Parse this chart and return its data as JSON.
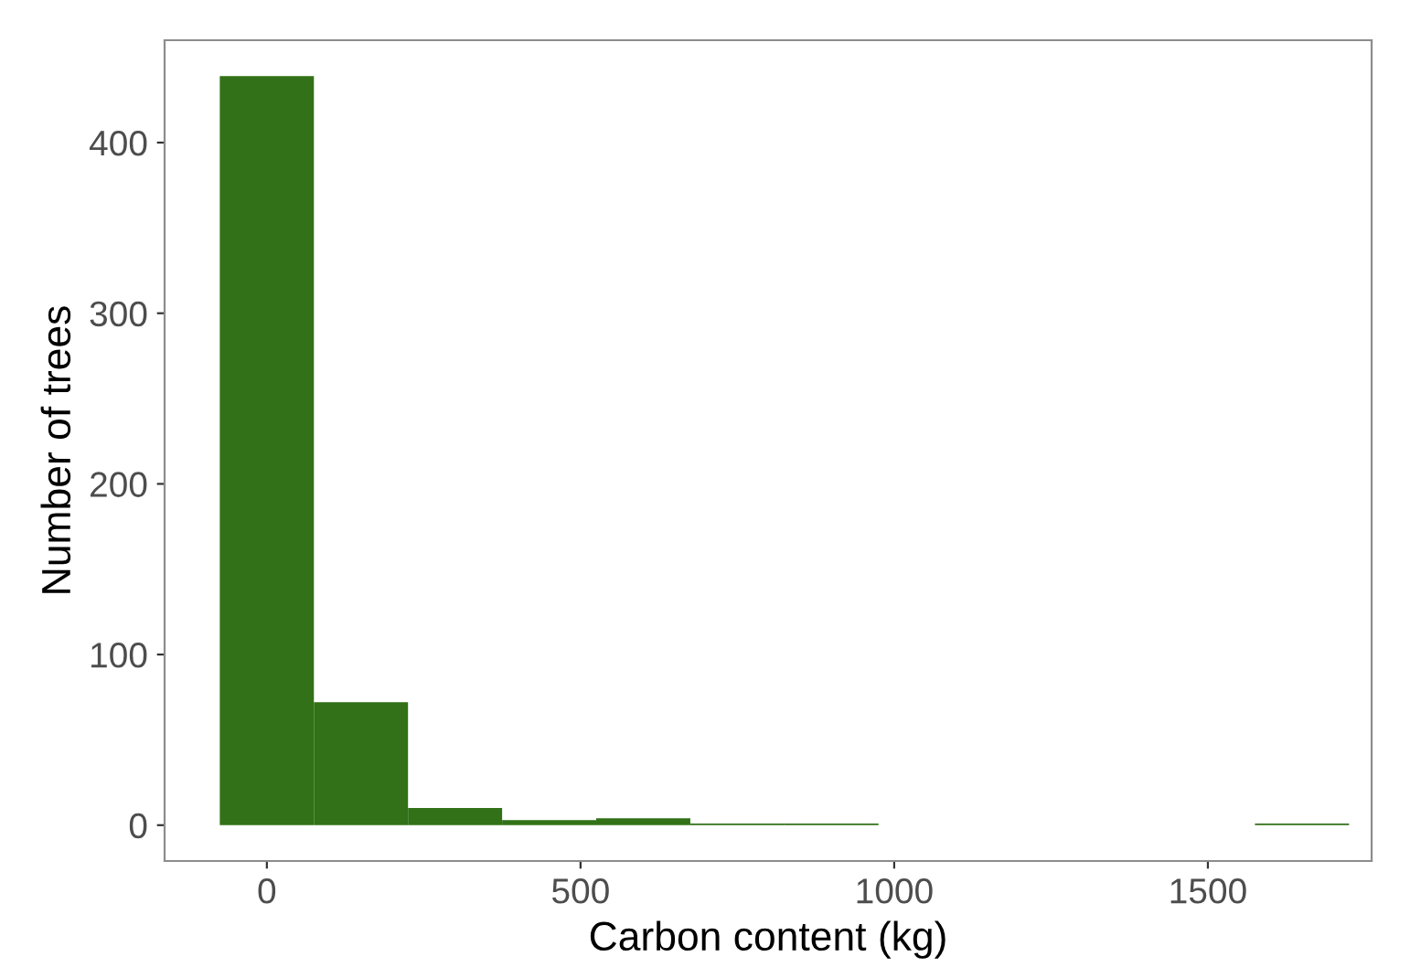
{
  "chart_data": {
    "type": "histogram",
    "xlabel": "Carbon content (kg)",
    "ylabel": "Number of trees",
    "bins": [
      -75,
      75,
      225,
      375,
      525,
      675,
      825,
      975,
      1125,
      1275,
      1425,
      1575,
      1725
    ],
    "values": [
      439,
      72,
      10,
      3,
      4,
      1,
      1,
      0,
      0,
      0,
      0,
      1
    ],
    "color": "#327117",
    "xlim": [
      -163,
      1761
    ],
    "ylim": [
      -21,
      460
    ],
    "xticks": [
      0,
      500,
      1000,
      1500
    ],
    "yticks": [
      0,
      100,
      200,
      300,
      400
    ],
    "grid": false
  }
}
